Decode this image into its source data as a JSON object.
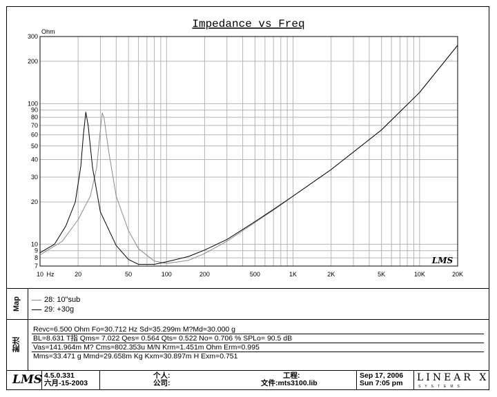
{
  "chart_data": {
    "type": "line",
    "title": "Impedance vs Freq",
    "ylabel": "Ohm",
    "xlabel": "",
    "xscale": "log",
    "yscale": "log",
    "xlim": [
      10,
      20000
    ],
    "ylim": [
      7,
      300
    ],
    "grid": true,
    "x_ticks": [
      "10",
      "Hz",
      "20",
      "50",
      "100",
      "200",
      "500",
      "1K",
      "2K",
      "5K",
      "10K",
      "20K"
    ],
    "y_ticks": [
      "300",
      "200",
      "100",
      "90",
      "80",
      "70",
      "60",
      "50",
      "40",
      "30",
      "20",
      "10",
      "9",
      "8",
      "7"
    ],
    "series": [
      {
        "name": "28: 10\"sub",
        "color": "#8a8a8a",
        "points": [
          [
            10,
            8.4
          ],
          [
            15,
            10.5
          ],
          [
            20,
            15
          ],
          [
            25,
            22
          ],
          [
            28,
            35
          ],
          [
            30,
            65
          ],
          [
            31,
            86
          ],
          [
            32,
            80
          ],
          [
            35,
            45
          ],
          [
            40,
            22
          ],
          [
            50,
            12.5
          ],
          [
            60,
            9.3
          ],
          [
            80,
            7.6
          ],
          [
            100,
            7.3
          ],
          [
            150,
            7.7
          ],
          [
            200,
            8.6
          ],
          [
            300,
            10.5
          ],
          [
            500,
            14.3
          ],
          [
            700,
            17.5
          ],
          [
            1000,
            22
          ],
          [
            2000,
            34
          ],
          [
            5000,
            65
          ],
          [
            10000,
            120
          ],
          [
            20000,
            260
          ]
        ]
      },
      {
        "name": "29: +30g",
        "color": "#000000",
        "points": [
          [
            10,
            8.7
          ],
          [
            13,
            10
          ],
          [
            16,
            13.5
          ],
          [
            19,
            20
          ],
          [
            21,
            36
          ],
          [
            22,
            60
          ],
          [
            23,
            87
          ],
          [
            24,
            70
          ],
          [
            26,
            35
          ],
          [
            30,
            17
          ],
          [
            40,
            9.8
          ],
          [
            50,
            7.8
          ],
          [
            60,
            7.2
          ],
          [
            80,
            7.2
          ],
          [
            100,
            7.5
          ],
          [
            150,
            8.2
          ],
          [
            200,
            9.1
          ],
          [
            300,
            10.8
          ],
          [
            500,
            14.5
          ],
          [
            700,
            17.7
          ],
          [
            1000,
            22
          ],
          [
            2000,
            34
          ],
          [
            5000,
            65
          ],
          [
            10000,
            120
          ],
          [
            20000,
            260
          ]
        ]
      }
    ],
    "watermark": "LMS"
  },
  "map_label": "Map",
  "params_label": "附注",
  "params": [
    "Revc=6.500 Ohm  Fo=30.712 Hz  Sd=35.299m M?Md=30.000 g",
    "BL=8.631 T指  Qms= 7.022  Qes= 0.564  Qts= 0.522  No= 0.706 %  SPLo= 90.5 dB",
    "Vas=141.964m M? Cms=802.353u M/N  Krm=1.451m Ohm  Erm=0.995",
    "Mms=33.471 g  Mmd=29.658m Kg  Kxm=30.897m H  Exm=0.751"
  ],
  "footer": {
    "logo": "LMS",
    "version": "4.5.0.331",
    "version_date": "六月-15-2003",
    "person_label": "个人:",
    "company_label": "公司:",
    "project_label": "工程:",
    "file_label": "文件:mts3100.lib",
    "date": "Sep 17, 2006",
    "time": "Sun  7:05 pm",
    "brand": "LINEAR X",
    "brand_sub": "SYSTEMS"
  }
}
